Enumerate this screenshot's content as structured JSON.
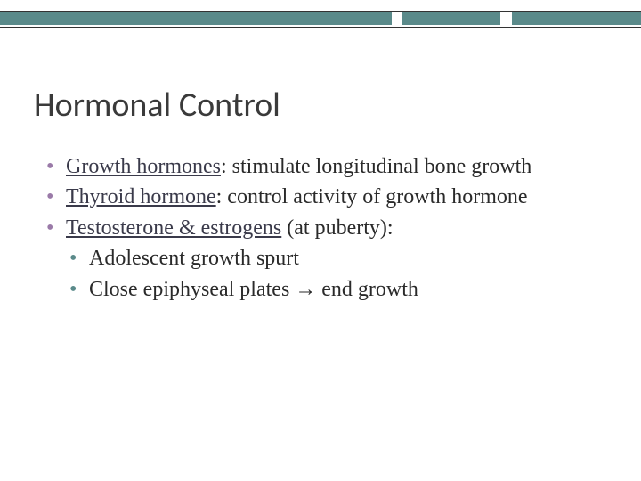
{
  "decor": {
    "teal_color": "#5a8a8a",
    "line_color": "#333333"
  },
  "title": "Hormonal Control",
  "bullets": {
    "b1_term": "Growth hormones",
    "b1_rest": ": stimulate longitudinal bone growth",
    "b2_term": "Thyroid hormone",
    "b2_rest": ": control activity of growth hormone",
    "b3_term": "Testosterone & estrogens",
    "b3_rest": " (at puberty):",
    "b3a": "Adolescent growth spurt",
    "b3b_pre": "Close epiphyseal plates ",
    "b3b_arrow": "→",
    "b3b_post": " end growth"
  }
}
